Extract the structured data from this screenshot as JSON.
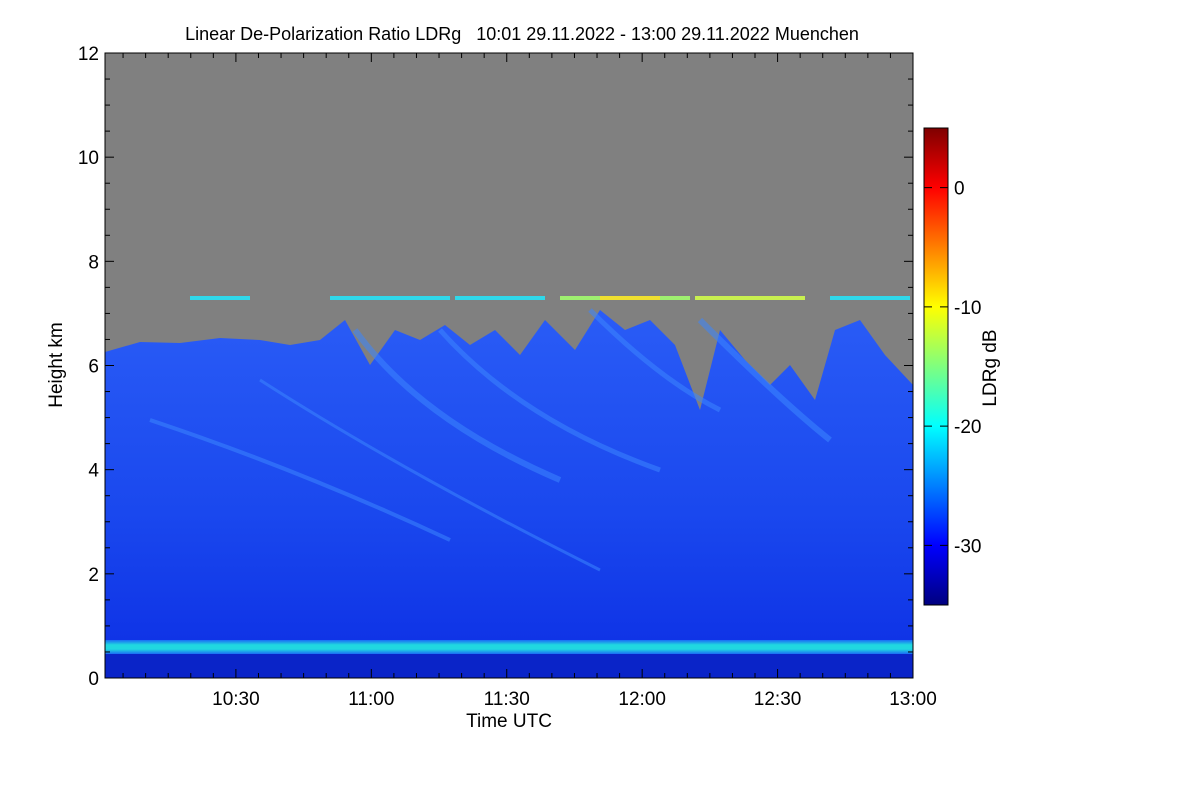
{
  "chart_data": {
    "type": "heatmap",
    "title": "Linear De-Polarization Ratio LDRg   10:01 29.11.2022 - 13:00 29.11.2022 Muenchen",
    "xlabel": "Time UTC",
    "ylabel": "Height km",
    "xlim": [
      "10:01",
      "13:00"
    ],
    "ylim": [
      0,
      12
    ],
    "x_ticks": [
      "10:30",
      "11:00",
      "11:30",
      "12:00",
      "12:30",
      "13:00"
    ],
    "y_ticks": [
      0,
      2,
      4,
      6,
      8,
      10,
      12
    ],
    "colorbar": {
      "label": "LDRg dB",
      "range": [
        -35,
        5
      ],
      "ticks": [
        0,
        -10,
        -20,
        -30
      ],
      "colormap": [
        "#00007f",
        "#0000ff",
        "#007fff",
        "#00ffff",
        "#7fff7f",
        "#ffff00",
        "#ff7f00",
        "#ff0000",
        "#7f0000"
      ]
    },
    "no_signal_color": "#808080",
    "features": {
      "cloud_top_km": [
        6.2,
        6.5
      ],
      "cloud_ldr_db": -30,
      "cirrus_layer_km": 7.3,
      "boundary_layer_km": 0.55,
      "boundary_layer_ldr_db": -22
    }
  }
}
